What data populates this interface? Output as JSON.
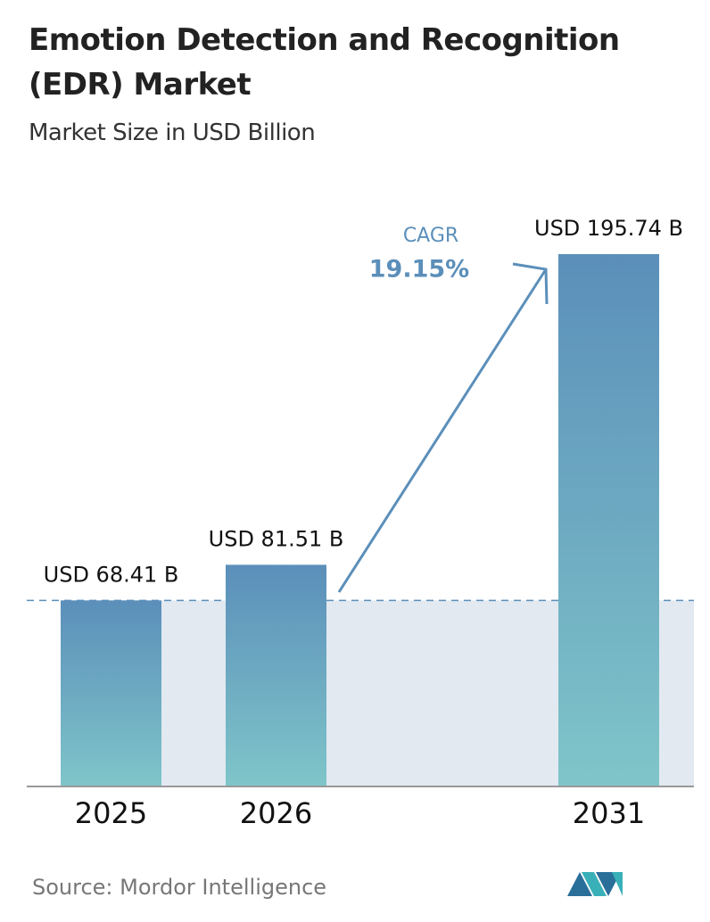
{
  "chart_data": {
    "type": "bar",
    "title": "Emotion Detection and Recognition (EDR) Market",
    "subtitle": "Market Size in USD Billion",
    "categories": [
      "2025",
      "2026",
      "2031"
    ],
    "values": [
      68.41,
      81.51,
      195.74
    ],
    "value_labels": [
      "USD 68.41 B",
      "USD 81.51 B",
      "USD 195.74 B"
    ],
    "color": "#5b8fba",
    "annotation": {
      "label": "CAGR",
      "value": "19.15%"
    },
    "source": "Source: Mordor Intelligence"
  }
}
